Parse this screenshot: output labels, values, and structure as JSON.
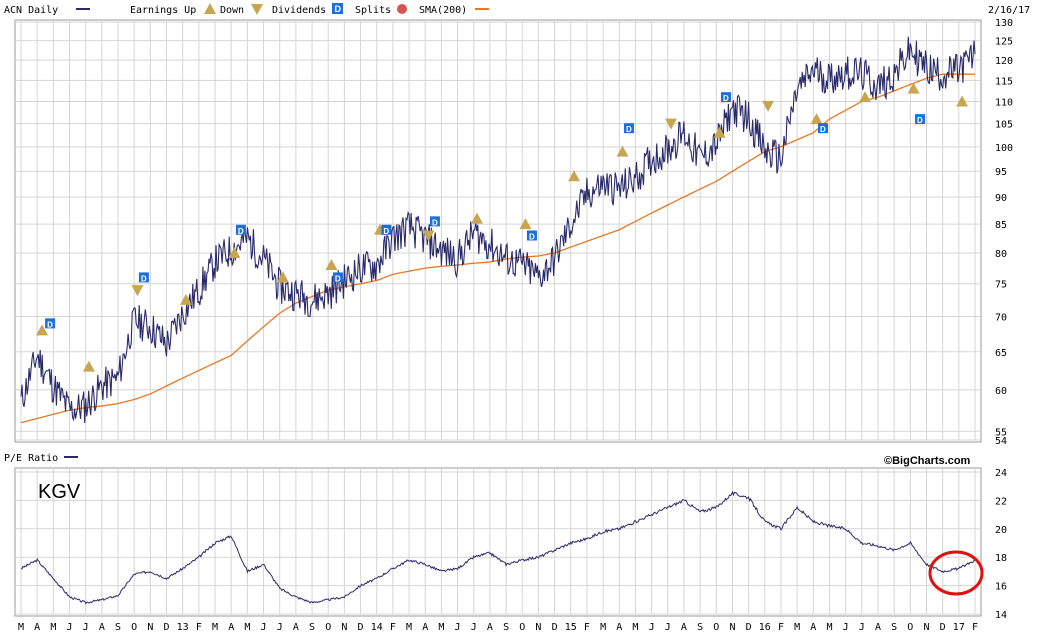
{
  "header": {
    "ticker_label": "ACN Daily",
    "earnings_up_label": "Earnings Up",
    "down_label": "Down",
    "dividends_label": "Dividends",
    "splits_label": "Splits",
    "sma_label": "SMA(200)",
    "date": "2/16/17"
  },
  "lower_panel": {
    "title": "P/E Ratio",
    "credit": "©BigCharts.com",
    "annotation": "KGV"
  },
  "colors": {
    "price_line": "#2b2b6b",
    "sma_line": "#e87722",
    "earnings_marker": "#c8a650",
    "dividend_marker": "#1e6fd9",
    "split_marker": "#d9534f",
    "grid": "#cfcfcf",
    "highlight_circle": "#e01010"
  },
  "chart_data": [
    {
      "type": "line",
      "title": "ACN Daily",
      "ylim": [
        54,
        130
      ],
      "ylog": true,
      "yticks": [
        54,
        55,
        60,
        65,
        70,
        75,
        80,
        85,
        90,
        95,
        100,
        105,
        110,
        115,
        120,
        125,
        130
      ],
      "x_labels": [
        "M",
        "A",
        "M",
        "J",
        "J",
        "A",
        "S",
        "O",
        "N",
        "D",
        "13",
        "F",
        "M",
        "A",
        "M",
        "J",
        "J",
        "A",
        "S",
        "O",
        "N",
        "D",
        "14",
        "F",
        "M",
        "A",
        "M",
        "J",
        "J",
        "A",
        "S",
        "O",
        "N",
        "D",
        "15",
        "F",
        "M",
        "A",
        "M",
        "J",
        "J",
        "A",
        "S",
        "O",
        "N",
        "D",
        "16",
        "F",
        "M",
        "A",
        "M",
        "J",
        "J",
        "A",
        "S",
        "O",
        "N",
        "D",
        "17",
        "F"
      ],
      "x_start": "2012-03",
      "series": [
        {
          "name": "ACN Daily",
          "values": [
            58.5,
            64.5,
            60.5,
            57.5,
            58.0,
            60.5,
            61.5,
            69.5,
            68.5,
            66.0,
            70.5,
            74.0,
            78.5,
            80.5,
            82.5,
            79.0,
            74.5,
            73.5,
            72.5,
            73.5,
            75.5,
            77.5,
            78.0,
            82.5,
            84.5,
            82.5,
            80.5,
            79.0,
            83.5,
            81.5,
            79.0,
            78.0,
            76.0,
            79.0,
            85.0,
            90.5,
            92.5,
            91.5,
            93.5,
            97.5,
            99.5,
            103.0,
            97.5,
            100.5,
            108.5,
            106.5,
            99.0,
            97.5,
            112.5,
            117.5,
            115.5,
            117.0,
            116.5,
            113.5,
            116.5,
            122.5,
            118.0,
            116.5,
            117.5,
            121.5
          ]
        },
        {
          "name": "SMA(200)",
          "values": [
            56.0,
            56.5,
            57.0,
            57.5,
            57.8,
            58.0,
            58.3,
            58.8,
            59.5,
            60.5,
            61.5,
            62.5,
            63.5,
            64.5,
            66.5,
            68.5,
            70.5,
            72.0,
            73.0,
            74.0,
            74.5,
            75.0,
            75.5,
            76.5,
            77.0,
            77.5,
            77.8,
            78.0,
            78.3,
            78.5,
            79.0,
            79.3,
            79.5,
            80.0,
            81.0,
            82.0,
            83.0,
            84.0,
            85.5,
            87.0,
            88.5,
            90.0,
            91.5,
            93.0,
            95.0,
            97.0,
            99.0,
            100.0,
            101.5,
            103.0,
            106.0,
            108.0,
            110.0,
            111.0,
            112.5,
            114.0,
            115.5,
            116.5,
            116.5,
            116.5
          ]
        }
      ],
      "markers": [
        {
          "kind": "earnings-up",
          "month": 1.3,
          "value": 68
        },
        {
          "kind": "dividend",
          "month": 1.8,
          "value": 69
        },
        {
          "kind": "earnings-up",
          "month": 4.2,
          "value": 63
        },
        {
          "kind": "earnings-down",
          "month": 7.2,
          "value": 74
        },
        {
          "kind": "dividend",
          "month": 7.6,
          "value": 76
        },
        {
          "kind": "earnings-up",
          "month": 10.2,
          "value": 72.5
        },
        {
          "kind": "earnings-up",
          "month": 13.2,
          "value": 80
        },
        {
          "kind": "dividend",
          "month": 13.6,
          "value": 84
        },
        {
          "kind": "earnings-up",
          "month": 16.2,
          "value": 76
        },
        {
          "kind": "earnings-up",
          "month": 19.2,
          "value": 78
        },
        {
          "kind": "dividend",
          "month": 19.6,
          "value": 76
        },
        {
          "kind": "earnings-up",
          "month": 22.2,
          "value": 84
        },
        {
          "kind": "dividend",
          "month": 22.6,
          "value": 84
        },
        {
          "kind": "earnings-down",
          "month": 25.2,
          "value": 83
        },
        {
          "kind": "dividend",
          "month": 25.6,
          "value": 85.5
        },
        {
          "kind": "earnings-up",
          "month": 28.2,
          "value": 86
        },
        {
          "kind": "earnings-up",
          "month": 31.2,
          "value": 85
        },
        {
          "kind": "dividend",
          "month": 31.6,
          "value": 83
        },
        {
          "kind": "earnings-up",
          "month": 34.2,
          "value": 94
        },
        {
          "kind": "earnings-up",
          "month": 37.2,
          "value": 99
        },
        {
          "kind": "dividend",
          "month": 37.6,
          "value": 104
        },
        {
          "kind": "earnings-down",
          "month": 40.2,
          "value": 105
        },
        {
          "kind": "earnings-up",
          "month": 43.2,
          "value": 103
        },
        {
          "kind": "dividend",
          "month": 43.6,
          "value": 111
        },
        {
          "kind": "earnings-down",
          "month": 46.2,
          "value": 109
        },
        {
          "kind": "earnings-up",
          "month": 49.2,
          "value": 106
        },
        {
          "kind": "dividend",
          "month": 49.6,
          "value": 104
        },
        {
          "kind": "earnings-up",
          "month": 52.2,
          "value": 111
        },
        {
          "kind": "earnings-up",
          "month": 55.2,
          "value": 113
        },
        {
          "kind": "dividend",
          "month": 55.6,
          "value": 106
        },
        {
          "kind": "earnings-up",
          "month": 58.2,
          "value": 110
        }
      ]
    },
    {
      "type": "line",
      "title": "P/E Ratio",
      "ylim": [
        14,
        24
      ],
      "yticks": [
        14,
        16,
        18,
        20,
        22,
        24
      ],
      "series": [
        {
          "name": "P/E Ratio",
          "values": [
            17.2,
            17.8,
            16.5,
            15.2,
            14.8,
            15.0,
            15.3,
            16.8,
            17.0,
            16.5,
            17.2,
            18.0,
            19.0,
            19.5,
            17.0,
            17.5,
            15.8,
            15.2,
            14.8,
            15.0,
            15.2,
            16.0,
            16.5,
            17.2,
            17.8,
            17.5,
            17.0,
            17.2,
            18.0,
            18.3,
            17.5,
            17.8,
            18.0,
            18.5,
            19.0,
            19.3,
            19.8,
            20.0,
            20.5,
            21.0,
            21.5,
            22.0,
            21.2,
            21.5,
            22.5,
            22.2,
            20.5,
            20.0,
            21.5,
            20.5,
            20.2,
            20.0,
            19.0,
            18.8,
            18.5,
            19.0,
            17.5,
            17.0,
            17.2,
            17.8
          ]
        }
      ],
      "annotations": [
        "KGV"
      ]
    }
  ]
}
